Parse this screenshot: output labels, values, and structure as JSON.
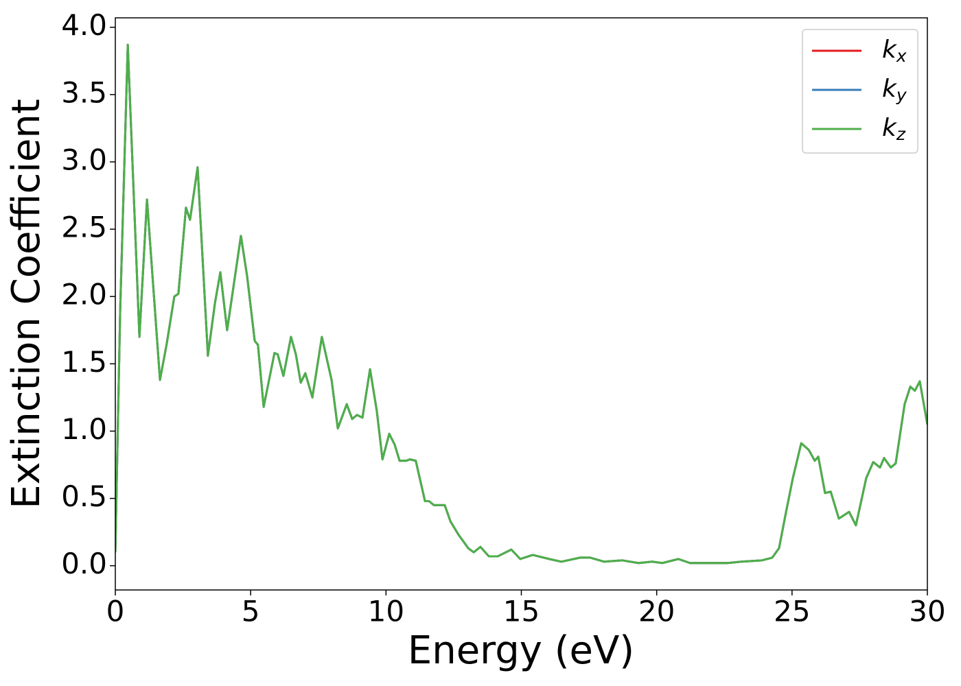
{
  "chart_data": {
    "type": "line",
    "xlabel": "Energy (eV)",
    "ylabel": "Extinction Coefficient",
    "x": [
      0,
      0.18,
      0.46,
      0.89,
      1.17,
      1.65,
      1.9,
      2.18,
      2.33,
      2.61,
      2.76,
      3.04,
      3.42,
      3.68,
      3.88,
      4.13,
      4.64,
      4.87,
      5.15,
      5.27,
      5.48,
      5.88,
      6.0,
      6.21,
      6.49,
      6.67,
      6.85,
      7.02,
      7.28,
      7.63,
      7.99,
      8.22,
      8.55,
      8.75,
      8.93,
      9.13,
      9.41,
      9.66,
      9.87,
      10.12,
      10.32,
      10.5,
      10.75,
      10.88,
      11.1,
      11.44,
      11.59,
      11.77,
      12.17,
      12.38,
      12.68,
      13.04,
      13.24,
      13.49,
      13.8,
      14.13,
      14.63,
      14.96,
      15.42,
      16.03,
      16.48,
      17.17,
      17.55,
      18.06,
      18.72,
      19.33,
      19.83,
      20.21,
      20.8,
      21.23,
      22.62,
      23.13,
      23.89,
      24.27,
      24.52,
      24.78,
      25.03,
      25.34,
      25.62,
      25.84,
      25.97,
      26.22,
      26.43,
      26.73,
      27.11,
      27.36,
      27.74,
      28.0,
      28.25,
      28.4,
      28.65,
      28.83,
      29.16,
      29.37,
      29.54,
      29.72,
      30.0
    ],
    "series": [
      {
        "name": "kx",
        "color": "#e41a1c",
        "values": [
          0.1,
          1.9,
          3.87,
          1.7,
          2.72,
          1.38,
          1.65,
          2.0,
          2.02,
          2.66,
          2.57,
          2.96,
          1.56,
          1.95,
          2.18,
          1.75,
          2.45,
          2.15,
          1.67,
          1.64,
          1.18,
          1.58,
          1.57,
          1.41,
          1.7,
          1.57,
          1.36,
          1.43,
          1.25,
          1.7,
          1.38,
          1.02,
          1.2,
          1.09,
          1.12,
          1.1,
          1.46,
          1.15,
          0.79,
          0.98,
          0.9,
          0.78,
          0.78,
          0.79,
          0.78,
          0.48,
          0.48,
          0.45,
          0.45,
          0.33,
          0.23,
          0.13,
          0.1,
          0.14,
          0.07,
          0.07,
          0.12,
          0.05,
          0.08,
          0.05,
          0.03,
          0.06,
          0.06,
          0.03,
          0.04,
          0.02,
          0.03,
          0.02,
          0.05,
          0.02,
          0.02,
          0.03,
          0.04,
          0.06,
          0.13,
          0.4,
          0.65,
          0.91,
          0.86,
          0.78,
          0.81,
          0.54,
          0.55,
          0.35,
          0.4,
          0.3,
          0.65,
          0.77,
          0.73,
          0.8,
          0.73,
          0.76,
          1.2,
          1.33,
          1.3,
          1.37,
          1.05
        ]
      },
      {
        "name": "ky",
        "color": "#377eb8",
        "values": [
          0.1,
          1.9,
          3.87,
          1.7,
          2.72,
          1.38,
          1.65,
          2.0,
          2.02,
          2.66,
          2.57,
          2.96,
          1.56,
          1.95,
          2.18,
          1.75,
          2.45,
          2.15,
          1.67,
          1.64,
          1.18,
          1.58,
          1.57,
          1.41,
          1.7,
          1.57,
          1.36,
          1.43,
          1.25,
          1.7,
          1.38,
          1.02,
          1.2,
          1.09,
          1.12,
          1.1,
          1.46,
          1.15,
          0.79,
          0.98,
          0.9,
          0.78,
          0.78,
          0.79,
          0.78,
          0.48,
          0.48,
          0.45,
          0.45,
          0.33,
          0.23,
          0.13,
          0.1,
          0.14,
          0.07,
          0.07,
          0.12,
          0.05,
          0.08,
          0.05,
          0.03,
          0.06,
          0.06,
          0.03,
          0.04,
          0.02,
          0.03,
          0.02,
          0.05,
          0.02,
          0.02,
          0.03,
          0.04,
          0.06,
          0.13,
          0.4,
          0.65,
          0.91,
          0.86,
          0.78,
          0.81,
          0.54,
          0.55,
          0.35,
          0.4,
          0.3,
          0.65,
          0.77,
          0.73,
          0.8,
          0.73,
          0.76,
          1.2,
          1.33,
          1.3,
          1.37,
          1.05
        ]
      },
      {
        "name": "kz",
        "color": "#4daf4a",
        "values": [
          0.1,
          1.9,
          3.87,
          1.7,
          2.72,
          1.38,
          1.65,
          2.0,
          2.02,
          2.66,
          2.57,
          2.96,
          1.56,
          1.95,
          2.18,
          1.75,
          2.45,
          2.15,
          1.67,
          1.64,
          1.18,
          1.58,
          1.57,
          1.41,
          1.7,
          1.57,
          1.36,
          1.43,
          1.25,
          1.7,
          1.38,
          1.02,
          1.2,
          1.09,
          1.12,
          1.1,
          1.46,
          1.15,
          0.79,
          0.98,
          0.9,
          0.78,
          0.78,
          0.79,
          0.78,
          0.48,
          0.48,
          0.45,
          0.45,
          0.33,
          0.23,
          0.13,
          0.1,
          0.14,
          0.07,
          0.07,
          0.12,
          0.05,
          0.08,
          0.05,
          0.03,
          0.06,
          0.06,
          0.03,
          0.04,
          0.02,
          0.03,
          0.02,
          0.05,
          0.02,
          0.02,
          0.03,
          0.04,
          0.06,
          0.13,
          0.4,
          0.65,
          0.91,
          0.86,
          0.78,
          0.81,
          0.54,
          0.55,
          0.35,
          0.4,
          0.3,
          0.65,
          0.77,
          0.73,
          0.8,
          0.73,
          0.76,
          1.2,
          1.33,
          1.3,
          1.37,
          1.05
        ]
      }
    ],
    "xlim": [
      0,
      30
    ],
    "xticks": [
      0,
      5,
      10,
      15,
      20,
      25,
      30
    ],
    "ylim": [
      -0.18,
      4.07
    ],
    "yticks": [
      {
        "value": 0,
        "label": "0.0"
      },
      0.5,
      {
        "value": 1,
        "label": "1.0"
      },
      1.5,
      {
        "value": 2,
        "label": "2.0"
      },
      2.5,
      {
        "value": 3,
        "label": "3.0"
      },
      3.5,
      {
        "value": 4,
        "label": "4.0"
      }
    ],
    "grid": false,
    "legend": "upper right"
  }
}
